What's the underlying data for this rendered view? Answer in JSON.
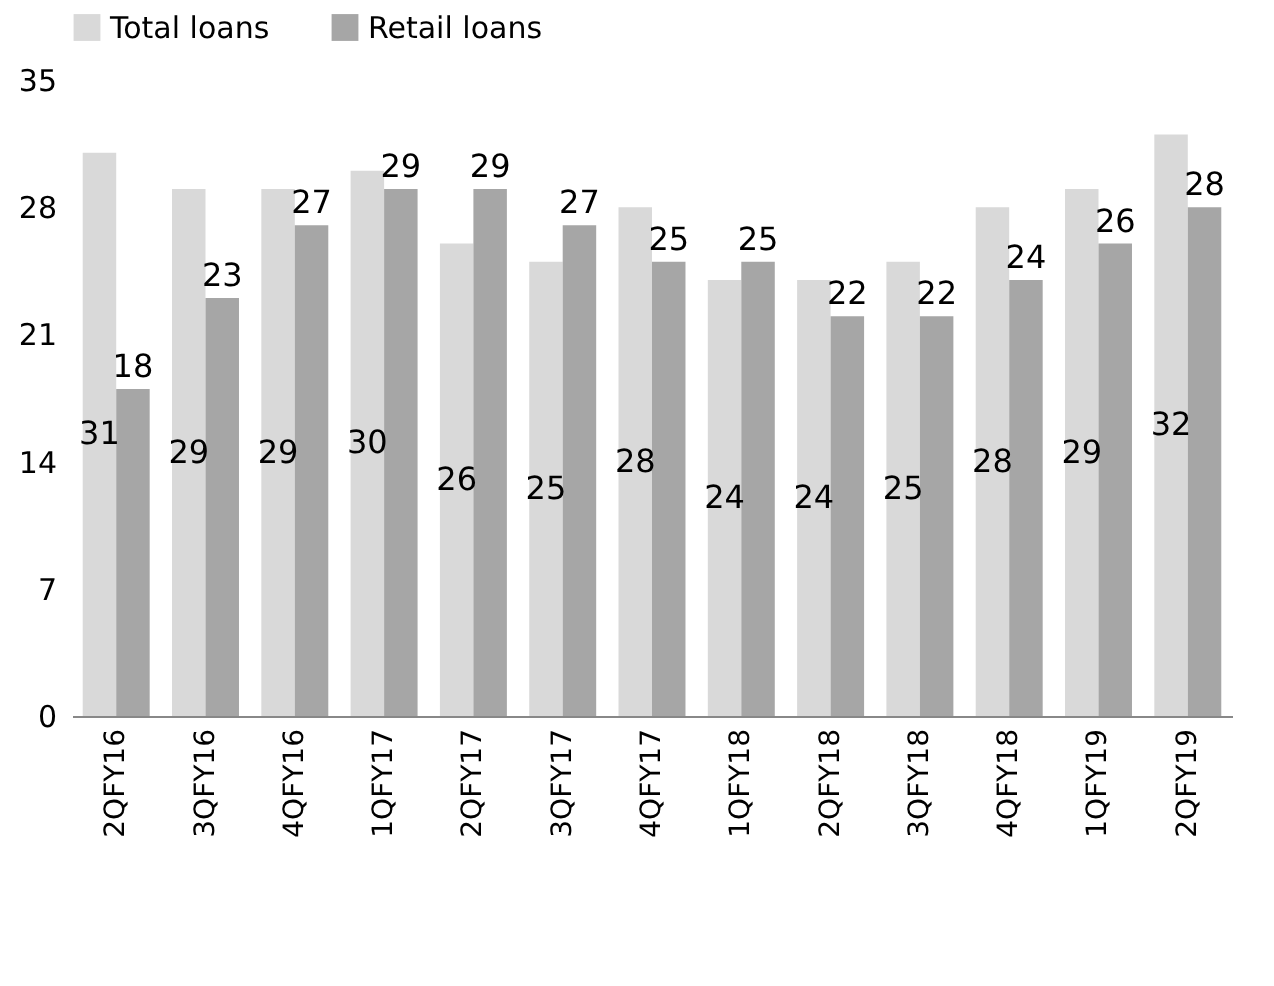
{
  "chart_data": {
    "type": "bar",
    "categories": [
      "2QFY16",
      "3QFY16",
      "4QFY16",
      "1QFY17",
      "2QFY17",
      "3QFY17",
      "4QFY17",
      "1QFY18",
      "2QFY18",
      "3QFY18",
      "4QFY18",
      "1QFY19",
      "2QFY19"
    ],
    "series": [
      {
        "name": "Total loans",
        "color": "#d9d9d9",
        "values": [
          31,
          29,
          29,
          30,
          26,
          25,
          28,
          24,
          24,
          25,
          28,
          29,
          32
        ]
      },
      {
        "name": "Retail loans",
        "color": "#a6a6a6",
        "values": [
          18,
          23,
          27,
          29,
          29,
          27,
          25,
          25,
          22,
          22,
          24,
          26,
          28
        ]
      }
    ],
    "ylim": [
      0,
      35
    ],
    "yticks": [
      0,
      7,
      14,
      21,
      28,
      35
    ],
    "grid": false,
    "legend": "top",
    "data_labels": true
  }
}
